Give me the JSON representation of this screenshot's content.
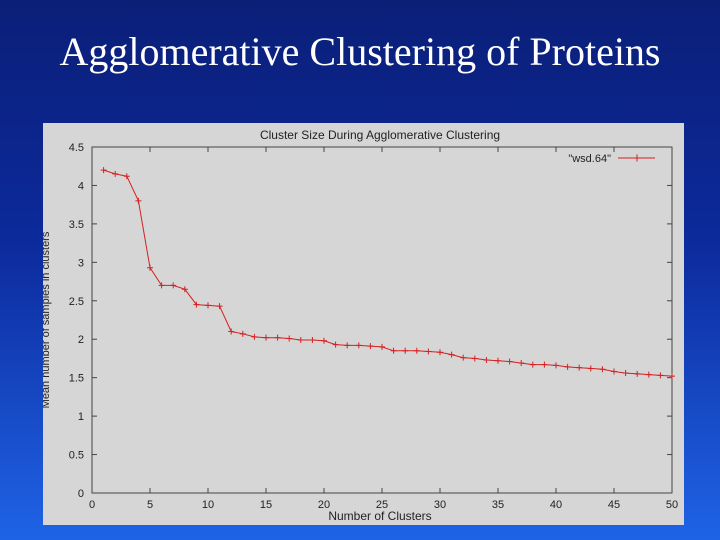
{
  "slide": {
    "title": "Agglomerative Clustering of Proteins"
  },
  "chart_data": {
    "type": "line",
    "title": "Cluster Size During Agglomerative Clustering",
    "xlabel": "Number of Clusters",
    "ylabel": "Mean number of samples in clusters",
    "xlim": [
      0,
      50
    ],
    "ylim": [
      0,
      4.5
    ],
    "xticks": [
      0,
      5,
      10,
      15,
      20,
      25,
      30,
      35,
      40,
      45,
      50
    ],
    "yticks": [
      "0",
      "0.5",
      "1",
      "1.5",
      "2",
      "2.5",
      "3",
      "3.5",
      "4",
      "4.5"
    ],
    "ytick_values": [
      0,
      0.5,
      1,
      1.5,
      2,
      2.5,
      3,
      3.5,
      4,
      4.5
    ],
    "grid": false,
    "legend_position": "top-right",
    "series": [
      {
        "name": "\"wsd.64\"",
        "color": "#d42020",
        "x": [
          1,
          2,
          3,
          4,
          5,
          6,
          7,
          8,
          9,
          10,
          11,
          12,
          13,
          14,
          15,
          16,
          17,
          18,
          19,
          20,
          21,
          22,
          23,
          24,
          25,
          26,
          27,
          28,
          29,
          30,
          31,
          32,
          33,
          34,
          35,
          36,
          37,
          38,
          39,
          40,
          41,
          42,
          43,
          44,
          45,
          46,
          47,
          48,
          49,
          50
        ],
        "y": [
          4.2,
          4.15,
          4.12,
          3.8,
          2.93,
          2.7,
          2.7,
          2.65,
          2.45,
          2.44,
          2.43,
          2.1,
          2.07,
          2.03,
          2.02,
          2.02,
          2.01,
          1.99,
          1.99,
          1.98,
          1.93,
          1.92,
          1.92,
          1.91,
          1.9,
          1.85,
          1.85,
          1.85,
          1.84,
          1.83,
          1.8,
          1.76,
          1.75,
          1.73,
          1.72,
          1.71,
          1.69,
          1.67,
          1.67,
          1.66,
          1.64,
          1.63,
          1.62,
          1.61,
          1.58,
          1.56,
          1.55,
          1.54,
          1.53,
          1.52
        ]
      }
    ]
  }
}
